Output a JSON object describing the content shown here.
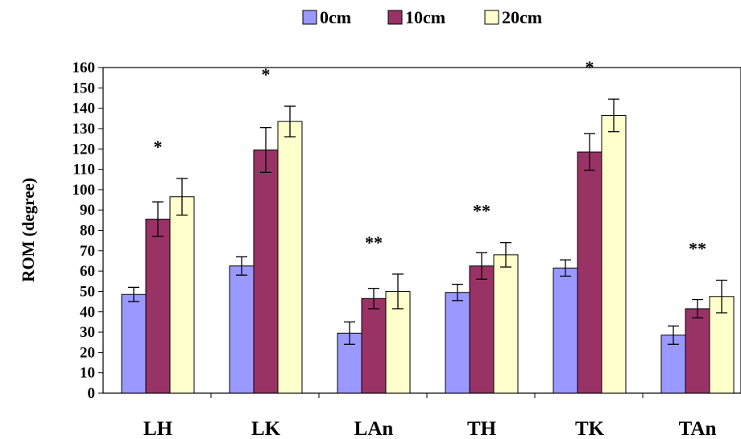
{
  "chart_data": {
    "type": "bar",
    "categories": [
      "LH",
      "LK",
      "LAn",
      "TH",
      "TK",
      "TAn"
    ],
    "series": [
      {
        "name": "0cm",
        "values": [
          48.5,
          62.5,
          29.5,
          49.5,
          61.5,
          28.5
        ],
        "errors": [
          3.5,
          4.5,
          5.5,
          4.0,
          4.0,
          4.5
        ]
      },
      {
        "name": "10cm",
        "values": [
          85.5,
          119.5,
          46.5,
          62.5,
          118.5,
          41.5
        ],
        "errors": [
          8.5,
          11.0,
          5.0,
          6.5,
          9.0,
          4.5
        ]
      },
      {
        "name": "20cm",
        "values": [
          96.5,
          133.5,
          50.0,
          68.0,
          136.5,
          47.5
        ],
        "errors": [
          9.0,
          7.5,
          8.5,
          6.0,
          8.0,
          8.0
        ]
      }
    ],
    "colors": {
      "0cm": "#9999ff",
      "10cm": "#993366",
      "20cm": "#ffffcc"
    },
    "significance": [
      "*",
      "*",
      "**",
      "**",
      "*",
      "**"
    ],
    "ylabel": "ROM (degree)",
    "xlabel": "",
    "ylim": [
      0,
      160
    ],
    "yticks": [
      0,
      10,
      20,
      30,
      40,
      50,
      60,
      70,
      80,
      90,
      100,
      110,
      120,
      130,
      140,
      150,
      160
    ],
    "grid": false,
    "legend_position": "top-center"
  }
}
